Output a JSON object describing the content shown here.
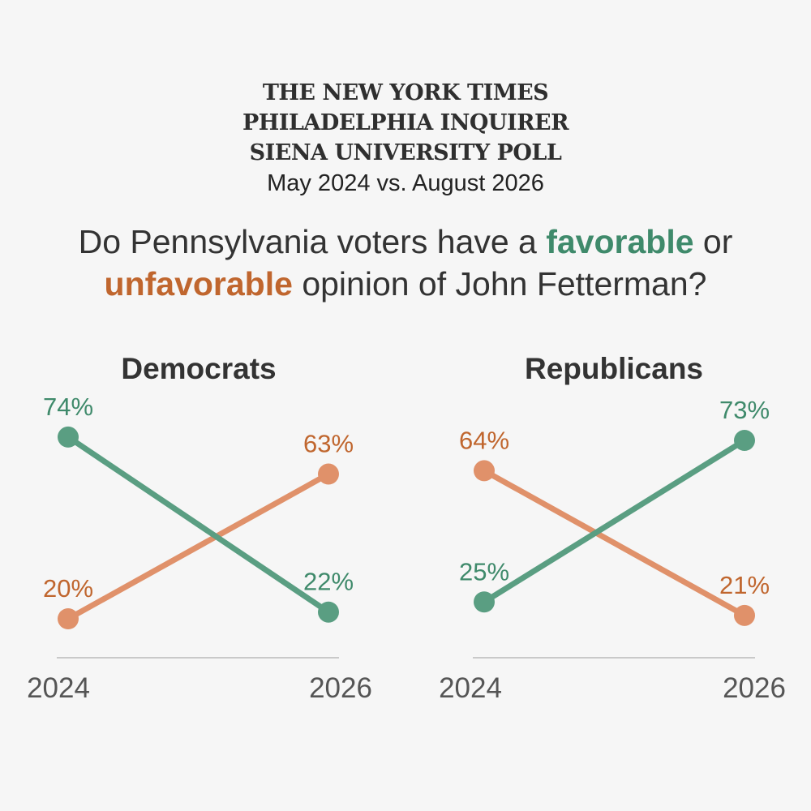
{
  "header": {
    "publishers": [
      "THE NEW YORK TIMES",
      "PHILADELPHIA INQUIRER",
      "SIENA UNIVERSITY POLL"
    ],
    "subtitle": "May 2024 vs. August 2026"
  },
  "question": {
    "part1": "Do Pennsylvania voters have a ",
    "favorable": "favorable",
    "part2": " or",
    "unfavorable": "unfavorable",
    "part3": " opinion of John Fetterman?"
  },
  "colors": {
    "favorable": "#5a9e82",
    "favorable_text": "#3f8a6b",
    "unfavorable": "#e0916a",
    "unfavorable_text": "#c0662e",
    "axis": "#c9c9c9"
  },
  "chart_data": [
    {
      "type": "line",
      "title": "Democrats",
      "x": [
        "2024",
        "2026"
      ],
      "ylim": [
        0,
        100
      ],
      "series": [
        {
          "key": "favorable",
          "values": [
            74,
            22
          ],
          "labels": [
            "74%",
            "22%"
          ]
        },
        {
          "key": "unfavorable",
          "values": [
            20,
            63
          ],
          "labels": [
            "20%",
            "63%"
          ]
        }
      ]
    },
    {
      "type": "line",
      "title": "Republicans",
      "x": [
        "2024",
        "2026"
      ],
      "ylim": [
        0,
        100
      ],
      "series": [
        {
          "key": "favorable",
          "values": [
            25,
            73
          ],
          "labels": [
            "25%",
            "73%"
          ]
        },
        {
          "key": "unfavorable",
          "values": [
            64,
            21
          ],
          "labels": [
            "64%",
            "21%"
          ]
        }
      ]
    }
  ]
}
